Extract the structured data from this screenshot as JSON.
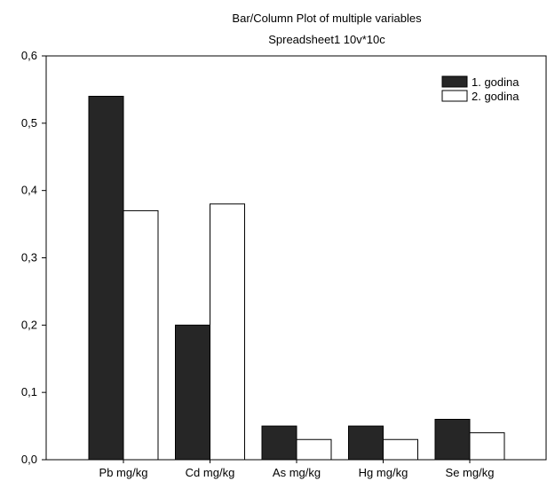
{
  "chart_data": {
    "type": "bar",
    "title": "Bar/Column Plot of multiple variables",
    "subtitle": "Spreadsheet1 10v*10c",
    "xlabel": "",
    "ylabel": "",
    "categories": [
      "Pb mg/kg",
      "Cd mg/kg",
      "As mg/kg",
      "Hg mg/kg",
      "Se mg/kg"
    ],
    "series": [
      {
        "name": "1. godina",
        "values": [
          0.54,
          0.2,
          0.05,
          0.05,
          0.06
        ],
        "color": "#262626"
      },
      {
        "name": "2. godina",
        "values": [
          0.37,
          0.38,
          0.03,
          0.03,
          0.04
        ],
        "color": "#ffffff"
      }
    ],
    "ylim": [
      0,
      0.6
    ],
    "yticks": [
      "0,0",
      "0,1",
      "0,2",
      "0,3",
      "0,4",
      "0,5",
      "0,6"
    ],
    "grid": false,
    "legend_position": "top-right"
  }
}
